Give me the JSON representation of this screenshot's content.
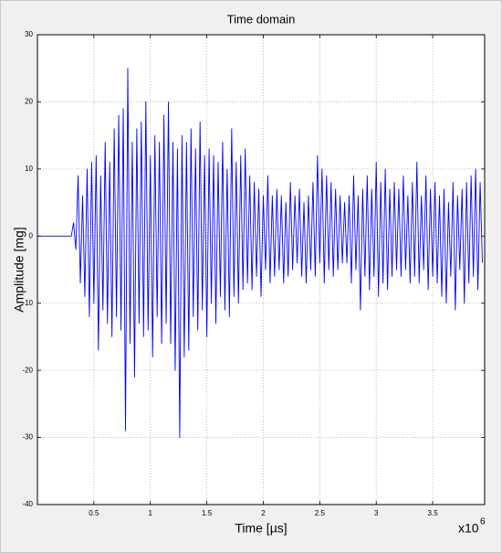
{
  "chart_data": {
    "type": "line",
    "title": "Time domain",
    "xlabel": "Time [µs]",
    "ylabel": "Amplitude [mg]",
    "x_multiplier": "x10",
    "x_exponent": "6",
    "x": [
      0,
      0.3,
      0.32,
      0.34,
      0.36,
      0.38,
      0.4,
      0.42,
      0.44,
      0.46,
      0.48,
      0.5,
      0.52,
      0.54,
      0.56,
      0.58,
      0.6,
      0.62,
      0.64,
      0.66,
      0.68,
      0.7,
      0.72,
      0.74,
      0.76,
      0.78,
      0.8,
      0.82,
      0.84,
      0.86,
      0.88,
      0.9,
      0.92,
      0.94,
      0.96,
      0.98,
      1.0,
      1.02,
      1.04,
      1.06,
      1.08,
      1.1,
      1.12,
      1.14,
      1.16,
      1.18,
      1.2,
      1.22,
      1.24,
      1.26,
      1.28,
      1.3,
      1.32,
      1.34,
      1.36,
      1.38,
      1.4,
      1.42,
      1.44,
      1.46,
      1.48,
      1.5,
      1.52,
      1.54,
      1.56,
      1.58,
      1.6,
      1.62,
      1.64,
      1.66,
      1.68,
      1.7,
      1.72,
      1.74,
      1.76,
      1.78,
      1.8,
      1.82,
      1.84,
      1.86,
      1.88,
      1.9,
      1.92,
      1.94,
      1.96,
      1.98,
      2.0,
      2.02,
      2.04,
      2.06,
      2.08,
      2.1,
      2.12,
      2.14,
      2.16,
      2.18,
      2.2,
      2.22,
      2.24,
      2.26,
      2.28,
      2.3,
      2.32,
      2.34,
      2.36,
      2.38,
      2.4,
      2.42,
      2.44,
      2.46,
      2.48,
      2.5,
      2.52,
      2.54,
      2.56,
      2.58,
      2.6,
      2.62,
      2.64,
      2.66,
      2.68,
      2.7,
      2.72,
      2.74,
      2.76,
      2.78,
      2.8,
      2.82,
      2.84,
      2.86,
      2.88,
      2.9,
      2.92,
      2.94,
      2.96,
      2.98,
      3.0,
      3.02,
      3.04,
      3.06,
      3.08,
      3.1,
      3.12,
      3.14,
      3.16,
      3.18,
      3.2,
      3.22,
      3.24,
      3.26,
      3.28,
      3.3,
      3.32,
      3.34,
      3.36,
      3.38,
      3.4,
      3.42,
      3.44,
      3.46,
      3.48,
      3.5,
      3.52,
      3.54,
      3.56,
      3.58,
      3.6,
      3.62,
      3.64,
      3.66,
      3.68,
      3.7,
      3.72,
      3.74,
      3.76,
      3.78,
      3.8,
      3.82,
      3.84,
      3.86,
      3.88,
      3.9,
      3.92,
      3.94
    ],
    "series": [
      {
        "color": "#0000ff",
        "values": [
          0,
          0,
          2,
          -2,
          9,
          -7,
          6,
          -9,
          10,
          -12,
          11,
          -10,
          12,
          -17,
          9,
          -11,
          14,
          -13,
          11,
          -15,
          16,
          -12,
          18,
          -14,
          19,
          -29,
          25,
          -16,
          14,
          -21,
          16,
          -13,
          17,
          -15,
          20,
          -14,
          12,
          -18,
          15,
          -12,
          14,
          -16,
          18,
          -13,
          20,
          -16,
          14,
          -20,
          13,
          -30,
          15,
          -18,
          14,
          -17,
          16,
          -12,
          13,
          -14,
          17,
          -11,
          12,
          -15,
          13,
          -10,
          12,
          -13,
          11,
          -9,
          14,
          -11,
          10,
          -12,
          16,
          -9,
          11,
          -10,
          12,
          -8,
          13,
          -7,
          9,
          -8,
          8,
          -6,
          7,
          -9,
          6,
          -5,
          9,
          -7,
          6,
          -6,
          7,
          -5,
          6,
          -7,
          5,
          -6,
          8,
          -5,
          6,
          -4,
          7,
          -6,
          5,
          -7,
          6,
          -5,
          8,
          -6,
          12,
          -4,
          10,
          -7,
          9,
          -5,
          8,
          -6,
          7,
          -5,
          6,
          -4,
          5,
          -4,
          6,
          -7,
          9,
          -5,
          6,
          -11,
          7,
          -6,
          9,
          -8,
          7,
          -6,
          11,
          -9,
          8,
          -7,
          10,
          -8,
          7,
          -6,
          8,
          -5,
          7,
          -6,
          9,
          -5,
          6,
          -7,
          8,
          -6,
          11,
          -7,
          6,
          -5,
          9,
          -8,
          7,
          -6,
          8,
          -7,
          6,
          -9,
          7,
          -10,
          5,
          -6,
          8,
          -11,
          6,
          -5,
          7,
          -10,
          8,
          -7,
          9,
          -6,
          10,
          -8,
          8,
          -4
        ]
      }
    ],
    "xlim": [
      0,
      3.96
    ],
    "ylim": [
      -40,
      30
    ],
    "xticks": [
      0.5,
      1,
      1.5,
      2,
      2.5,
      3,
      3.5
    ],
    "yticks": [
      -40,
      -30,
      -20,
      -10,
      0,
      10,
      20,
      30
    ],
    "grid": true
  }
}
